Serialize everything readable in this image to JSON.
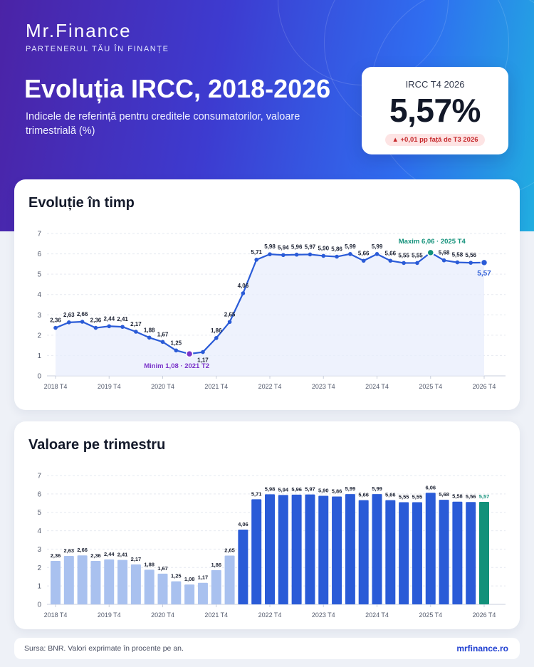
{
  "brand": {
    "name": "Mr.Finance",
    "tagline": "PARTENERUL TĂU ÎN FINANȚE"
  },
  "header": {
    "title": "Evoluția IRCC, 2018-2026",
    "subtitle": "Indicele de referință pentru creditele consumatorilor, valoare trimestrială (%)"
  },
  "kpi": {
    "label": "IRCC T4 2026",
    "value": "5,57%",
    "delta": "▲ +0,01 pp față de T3 2026"
  },
  "colors": {
    "line": "#2a5bd7",
    "bar_light": "#a9c1ef",
    "bar_dark": "#2a5bd7",
    "highlight": "#12917a",
    "min": "#7b35c9",
    "max": "#12917a"
  },
  "chart_data": [
    {
      "type": "line",
      "title": "Evoluție în timp",
      "x_ticks": [
        "2018 T4",
        "2019 T4",
        "2020 T4",
        "2021 T4",
        "2022 T4",
        "2023 T4",
        "2024 T4",
        "2025 T4",
        "2026 T4"
      ],
      "values": [
        2.36,
        2.63,
        2.66,
        2.36,
        2.44,
        2.41,
        2.17,
        1.88,
        1.67,
        1.25,
        1.08,
        1.17,
        1.86,
        2.65,
        4.06,
        5.71,
        5.98,
        5.94,
        5.96,
        5.97,
        5.9,
        5.86,
        5.99,
        5.66,
        5.99,
        5.66,
        5.55,
        5.55,
        6.06,
        5.68,
        5.58,
        5.56,
        5.57
      ],
      "labels": [
        "2,36",
        "2,63",
        "2,66",
        "2,36",
        "2,44",
        "2,41",
        "2,17",
        "1,88",
        "1,67",
        "1,25",
        "",
        "1,17",
        "1,86",
        "2,65",
        "4,06",
        "5,71",
        "5,98",
        "5,94",
        "5,96",
        "5,97",
        "5,90",
        "5,86",
        "5,99",
        "5,66",
        "5,99",
        "5,66",
        "5,55",
        "5,55",
        "",
        "5,68",
        "5,58",
        "5,56",
        "5,57"
      ],
      "ylim": [
        0,
        7
      ],
      "y_ticks": [
        "0",
        "1",
        "2",
        "3",
        "4",
        "5",
        "6",
        "7"
      ],
      "min_annotation": "Minim 1,08 · 2021 T2",
      "max_annotation": "Maxim 6,06 · 2025 T4",
      "grid": true
    },
    {
      "type": "bar",
      "title": "Valoare pe trimestru",
      "x_ticks": [
        "2018 T4",
        "2019 T4",
        "2020 T4",
        "2021 T4",
        "2022 T4",
        "2023 T4",
        "2024 T4",
        "2025 T4",
        "2026 T4"
      ],
      "values": [
        2.36,
        2.63,
        2.66,
        2.36,
        2.44,
        2.41,
        2.17,
        1.88,
        1.67,
        1.25,
        1.08,
        1.17,
        1.86,
        2.65,
        4.06,
        5.71,
        5.98,
        5.94,
        5.96,
        5.97,
        5.9,
        5.86,
        5.99,
        5.66,
        5.99,
        5.66,
        5.55,
        5.55,
        6.06,
        5.68,
        5.58,
        5.56,
        5.57
      ],
      "labels": [
        "2,36",
        "2,63",
        "2,66",
        "2,36",
        "2,44",
        "2,41",
        "2,17",
        "1,88",
        "1,67",
        "1,25",
        "1,08",
        "1,17",
        "1,86",
        "2,65",
        "4,06",
        "5,71",
        "5,98",
        "5,94",
        "5,96",
        "5,97",
        "5,90",
        "5,86",
        "5,99",
        "5,66",
        "5,99",
        "5,66",
        "5,55",
        "5,55",
        "6,06",
        "5,68",
        "5,58",
        "5,56",
        "5,57"
      ],
      "ylim": [
        0,
        7
      ],
      "y_ticks": [
        "0",
        "1",
        "2",
        "3",
        "4",
        "5",
        "6",
        "7"
      ],
      "grid": true
    }
  ],
  "footer": {
    "source": "Sursa: BNR. Valori exprimate în procente pe an.",
    "site": "mrfinance.ro"
  }
}
